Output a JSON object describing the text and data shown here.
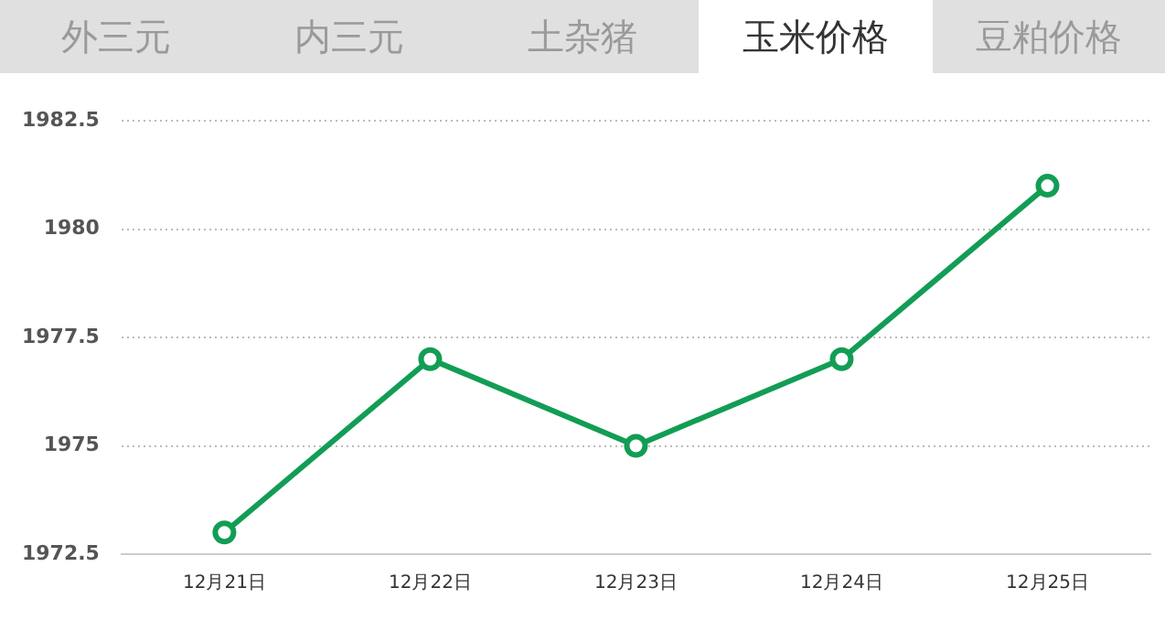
{
  "chart_data": {
    "type": "line",
    "annotations": [
      "外三元",
      "内三元",
      "土杂猪",
      "玉米价格",
      "豆粕价格"
    ],
    "categories": [
      "12月21日",
      "12月22日",
      "12月23日",
      "12月24日",
      "12月25日"
    ],
    "series": [
      {
        "color": "#129d55",
        "values": [
          1973,
          1977,
          1975,
          1977,
          1981
        ]
      }
    ],
    "ylim": [
      1972.5,
      1982.5
    ],
    "yticks": [
      1972.5,
      1975,
      1977.5,
      1980,
      1982.5
    ],
    "grid": "y",
    "legend": false,
    "marker": "circle",
    "line_style": "solid"
  }
}
